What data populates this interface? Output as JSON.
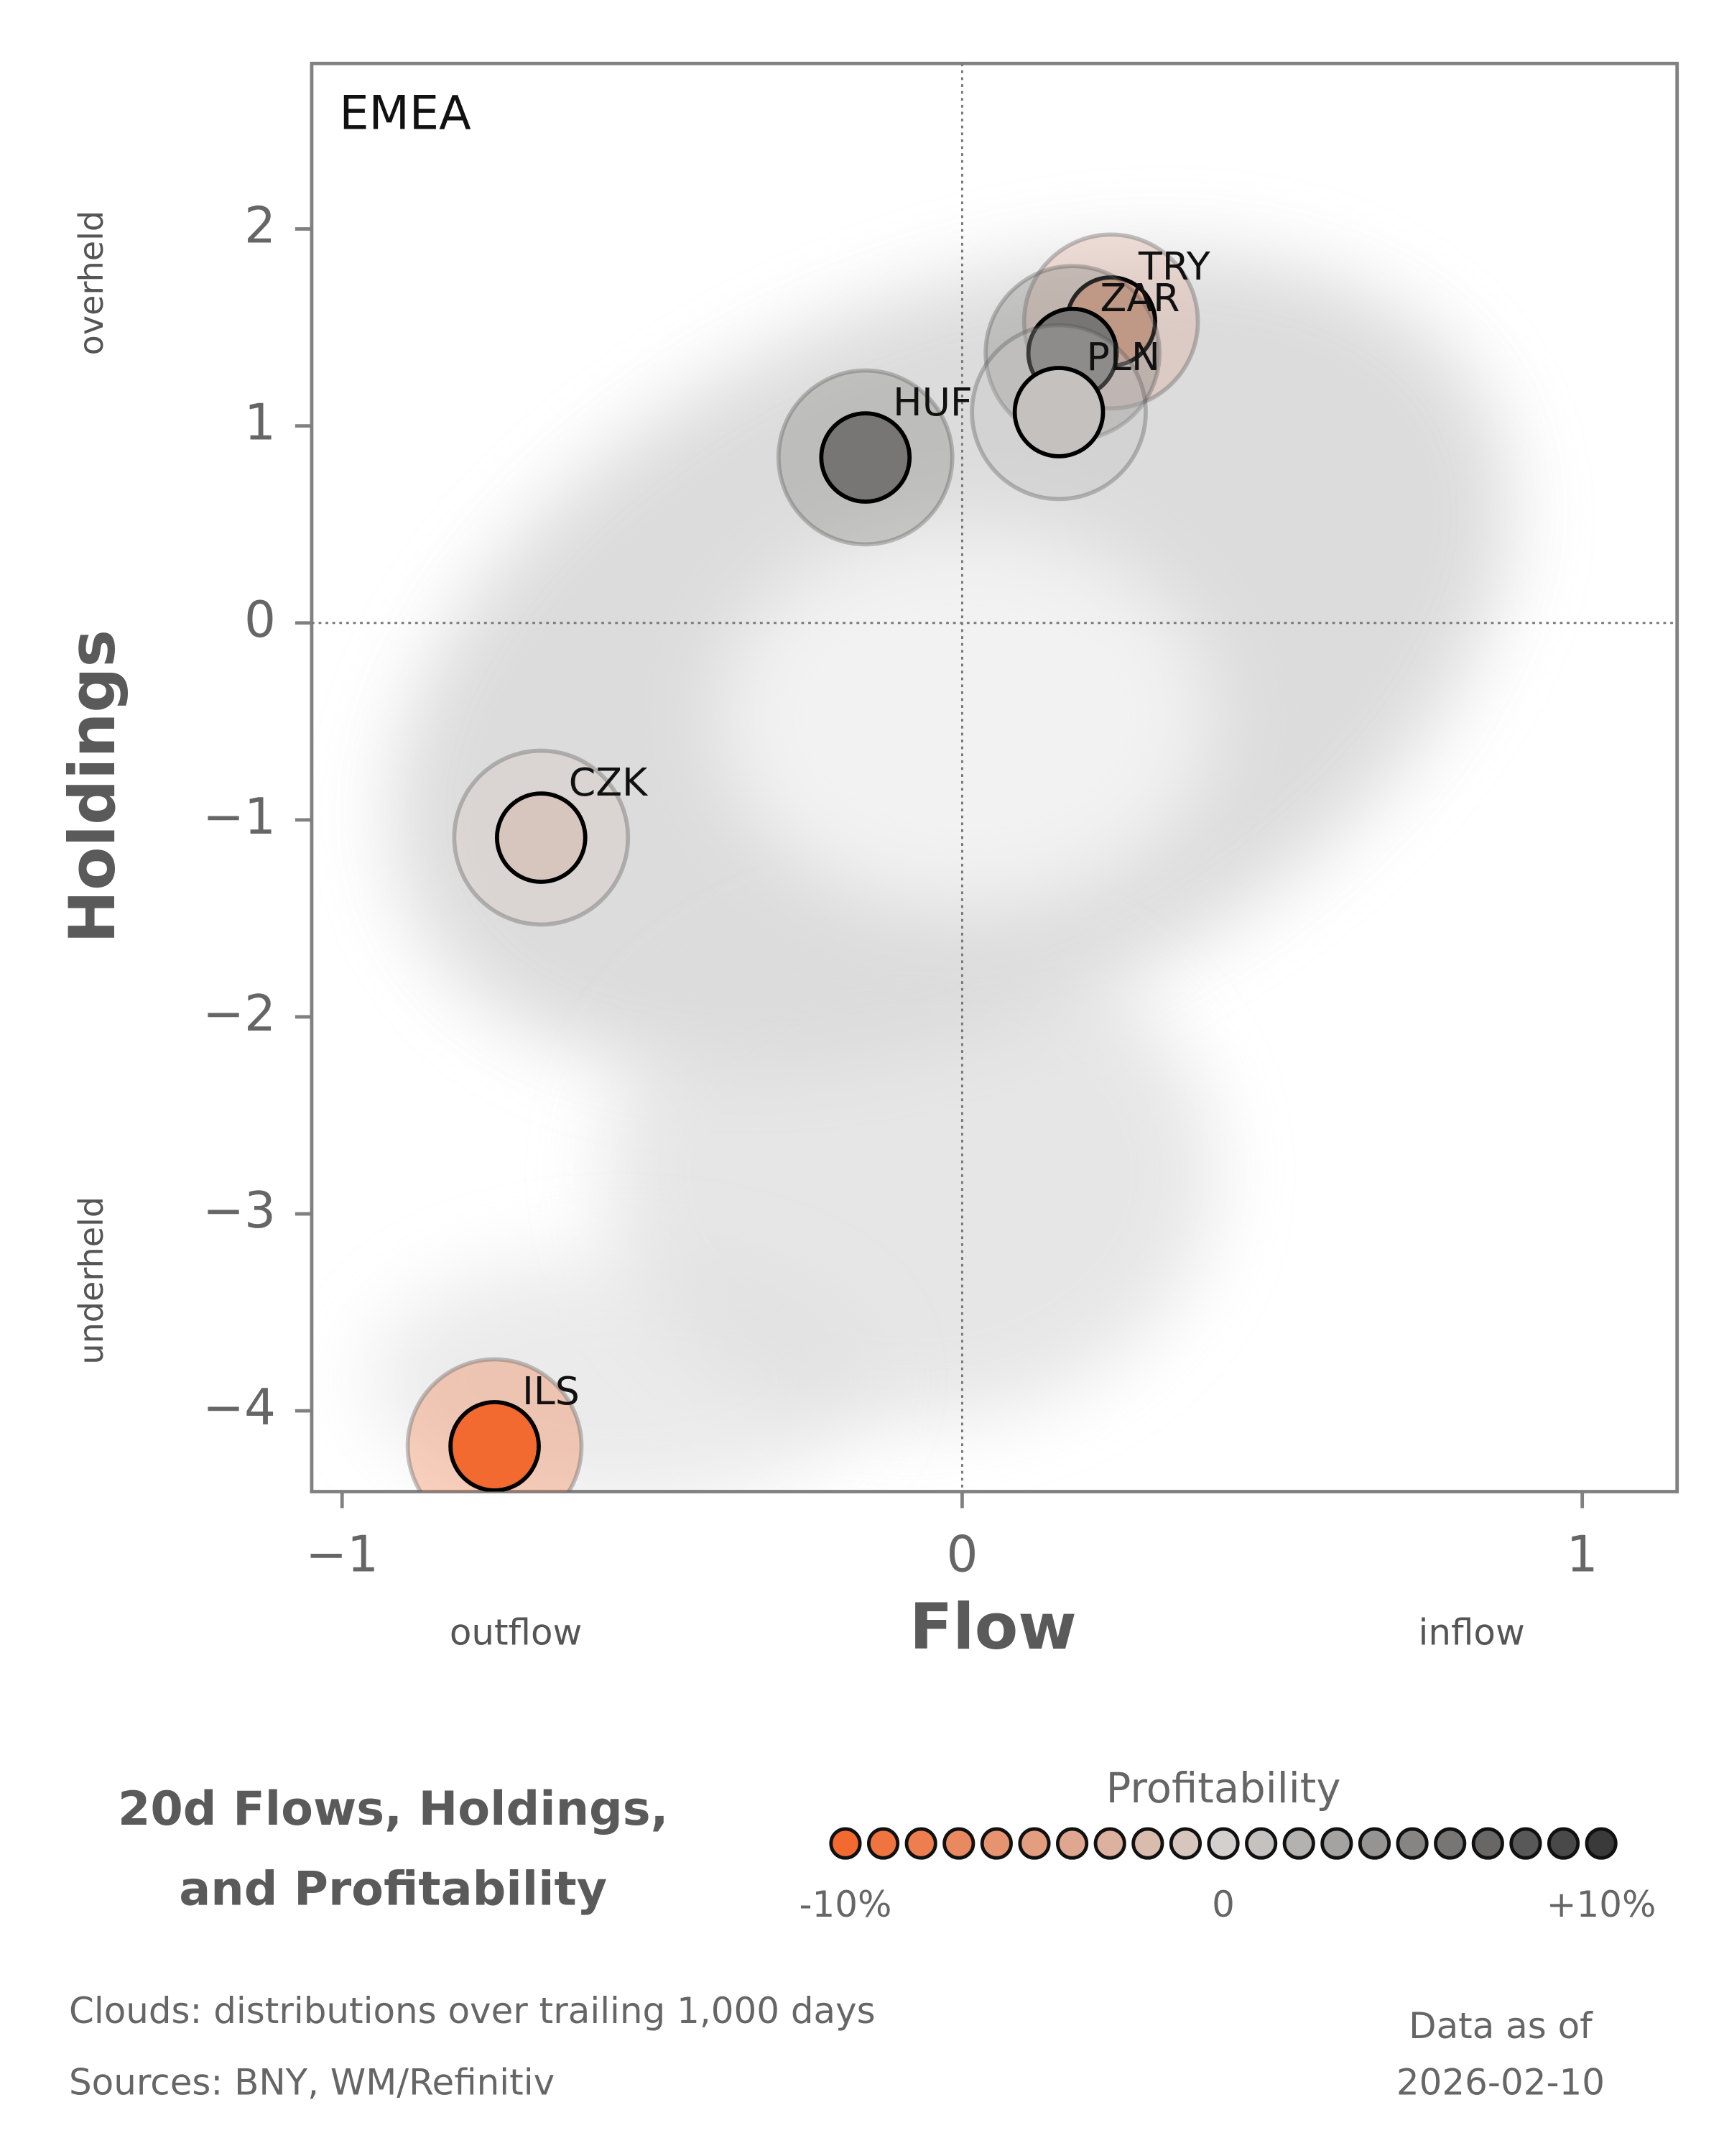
{
  "chart_data": {
    "type": "bubble",
    "panel_label": "EMEA",
    "xlabel": "Flow",
    "ylabel": "Holdings",
    "x_low_label": "outflow",
    "x_high_label": "inflow",
    "y_high_label": "overheld",
    "y_low_label": "underheld",
    "xlim": [
      -1.049,
      1.153
    ],
    "ylim": [
      -4.41,
      2.84
    ],
    "xticks": [
      {
        "value": -1,
        "label": "−1"
      },
      0,
      1
    ],
    "yticks": [
      {
        "value": -4,
        "label": "−4"
      },
      {
        "value": -3,
        "label": "−3"
      },
      {
        "value": -2,
        "label": "−2"
      },
      {
        "value": -1,
        "label": "−1"
      },
      0,
      1,
      2
    ],
    "points": [
      {
        "name": "TRY",
        "x": 0.24,
        "y": 1.53,
        "profitability": -4
      },
      {
        "name": "ZAR",
        "x": 0.178,
        "y": 1.37,
        "profitability": 6
      },
      {
        "name": "PLN",
        "x": 0.156,
        "y": 1.07,
        "profitability": 1
      },
      {
        "name": "HUF",
        "x": -0.156,
        "y": 0.84,
        "profitability": 6
      },
      {
        "name": "CZK",
        "x": -0.679,
        "y": -1.09,
        "profitability": -1
      },
      {
        "name": "ILS",
        "x": -0.754,
        "y": -4.18,
        "profitability": -10
      }
    ],
    "title": [
      "20d Flows, Holdings,",
      "and Profitability"
    ],
    "colorbar": {
      "title": "Profitability",
      "clim": [
        -10,
        10
      ],
      "colors": [
        "#f26a30",
        "#d3d0ce",
        "#3a3a3a"
      ],
      "ticks": [
        {
          "value": -10,
          "label": "-10%"
        },
        0,
        {
          "value": 10,
          "label": "+10%"
        }
      ]
    },
    "notes": [
      "Clouds:  distributions over trailing 1,000 days",
      "Sources:  BNY, WM/Refinitiv"
    ],
    "as_of": [
      "Data as of",
      "2026-02-10"
    ]
  }
}
